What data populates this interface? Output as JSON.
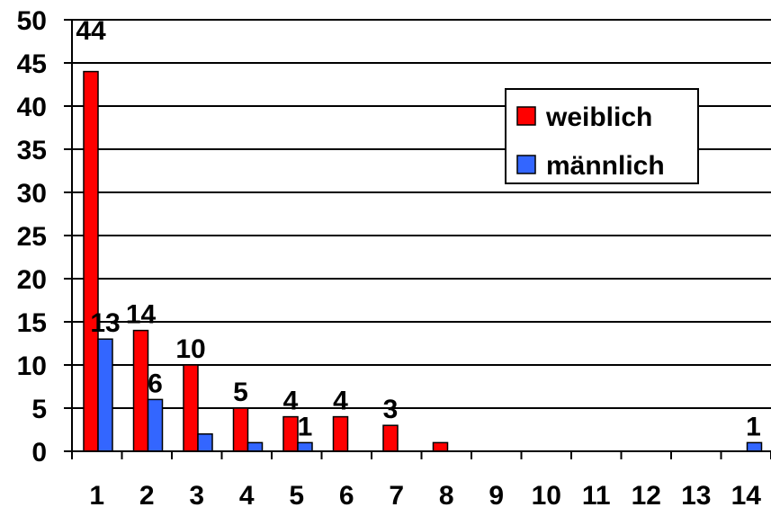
{
  "chart_data": {
    "type": "bar",
    "title": "",
    "xlabel": "",
    "ylabel": "",
    "ylim": [
      0,
      50
    ],
    "yticks": [
      "0",
      "5",
      "10",
      "15",
      "20",
      "25",
      "30",
      "35",
      "40",
      "45",
      "50"
    ],
    "categories": [
      "1",
      "2",
      "3",
      "4",
      "5",
      "6",
      "7",
      "8",
      "9",
      "10",
      "11",
      "12",
      "13",
      "14"
    ],
    "grid": true,
    "legend_position": "top-right",
    "series": [
      {
        "name": "weiblich",
        "color": "#ff0000",
        "values": [
          44,
          14,
          10,
          5,
          4,
          4,
          3,
          1,
          0,
          0,
          0,
          0,
          0,
          0
        ],
        "data_labels": [
          "44",
          "14",
          "10",
          "5",
          "4",
          "4",
          "3",
          "",
          "",
          "",
          "",
          "",
          "",
          ""
        ]
      },
      {
        "name": "männlich",
        "color": "#3366ff",
        "values": [
          13,
          6,
          2,
          1,
          1,
          0,
          0,
          0,
          0,
          0,
          0,
          0,
          0,
          1
        ],
        "data_labels": [
          "13",
          "6",
          "",
          "",
          "1",
          "",
          "",
          "",
          "",
          "",
          "",
          "",
          "",
          "1"
        ]
      }
    ]
  }
}
